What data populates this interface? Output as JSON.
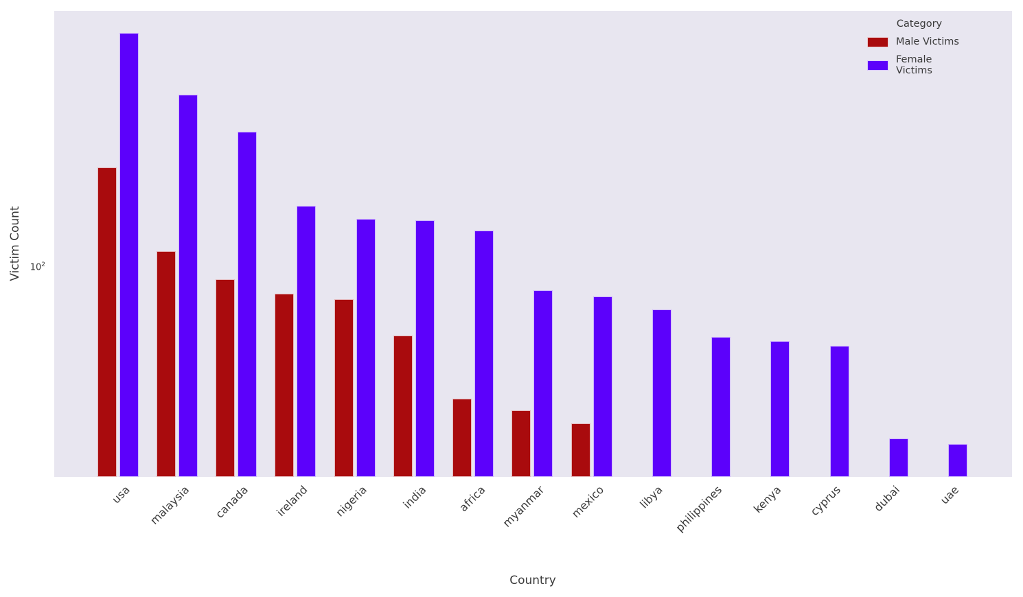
{
  "figure": {
    "ylabel": "Victim Count",
    "xlabel": "Country",
    "ytick": {
      "mantissa": "10",
      "exponent": "2"
    },
    "legend_title": "Category"
  },
  "chart_data": {
    "type": "bar",
    "title": "",
    "xlabel": "Country",
    "ylabel": "Victim Count",
    "yscale": "log",
    "ylim": [
      13,
      1240
    ],
    "ytick_labels": [
      "10^2"
    ],
    "grid": false,
    "plot_background": "#e8e6f0",
    "legend_position": "upper right",
    "legend_title": "Category",
    "categories": [
      "usa",
      "malaysia",
      "canada",
      "ireland",
      "nigeria",
      "india",
      "africa",
      "myanmar",
      "mexico",
      "libya",
      "philippines",
      "kenya",
      "cyprus",
      "dubai",
      "uae"
    ],
    "series": [
      {
        "name": "Male Victims",
        "color": "#a90b0d",
        "values": [
          268,
          118,
          90,
          78,
          74,
          52,
          28,
          25,
          22,
          null,
          null,
          null,
          null,
          null,
          null
        ]
      },
      {
        "name": "Female Victims",
        "color": "#5c01fb",
        "values": [
          1000,
          547,
          380,
          184,
          162,
          160,
          145,
          81,
          76,
          67,
          51,
          49,
          47,
          19,
          18
        ]
      }
    ]
  }
}
